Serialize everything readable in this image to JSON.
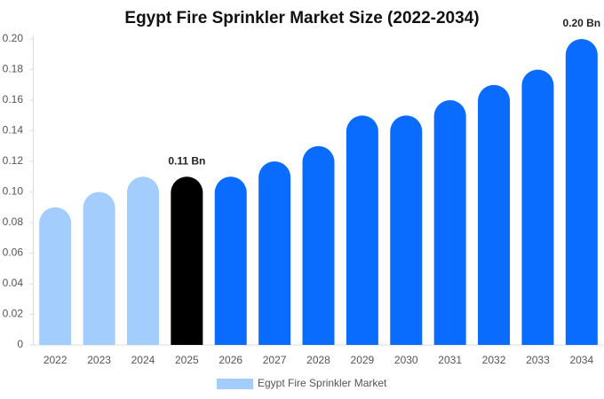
{
  "chart_data": {
    "type": "bar",
    "title": "Egypt Fire Sprinkler Market Size (2022-2034)",
    "categories": [
      "2022",
      "2023",
      "2024",
      "2025",
      "2026",
      "2027",
      "2028",
      "2029",
      "2030",
      "2031",
      "2032",
      "2033",
      "2034"
    ],
    "series": [
      {
        "name": "Egypt Fire Sprinkler Market",
        "color": "#a3cdfd",
        "colors": [
          "#a3cdfd",
          "#a3cdfd",
          "#a3cdfd",
          "#000000",
          "#0a6cff",
          "#0a6cff",
          "#0a6cff",
          "#0a6cff",
          "#0a6cff",
          "#0a6cff",
          "#0a6cff",
          "#0a6cff",
          "#0a6cff"
        ],
        "values": [
          0.09,
          0.1,
          0.11,
          0.11,
          0.11,
          0.12,
          0.13,
          0.15,
          0.15,
          0.16,
          0.17,
          0.18,
          0.2
        ],
        "value_labels": [
          null,
          null,
          null,
          "0.11 Bn",
          null,
          null,
          null,
          null,
          null,
          null,
          null,
          null,
          "0.20 Bn"
        ]
      }
    ],
    "ylim": [
      0,
      0.2
    ],
    "yticks": [
      0,
      0.02,
      0.04,
      0.06,
      0.08,
      {
        "value": 0.1,
        "label": "0.10"
      },
      0.12,
      0.14,
      0.16,
      0.18,
      {
        "value": 0.2,
        "label": "0.20"
      }
    ],
    "grid": false,
    "legend": "bottom"
  }
}
